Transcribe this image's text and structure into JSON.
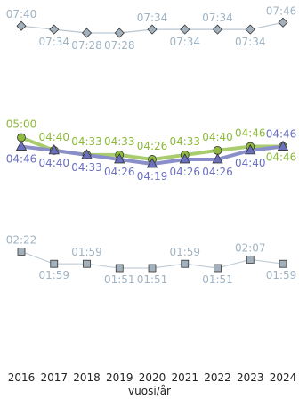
{
  "chart_data": {
    "type": "line",
    "xlabel": "vuosi/år",
    "categories": [
      "2016",
      "2017",
      "2018",
      "2019",
      "2020",
      "2021",
      "2022",
      "2023",
      "2024"
    ],
    "value_format": "mm:ss",
    "series": [
      {
        "id": "top",
        "marker": "diamond",
        "line_color": "#b9c6d2",
        "marker_fill": "#a3b1bd",
        "label_color": "#9fb3c2",
        "values": [
          "07:40",
          "07:34",
          "07:28",
          "07:28",
          "07:34",
          "07:34",
          "07:34",
          "07:34",
          "07:46"
        ]
      },
      {
        "id": "green",
        "marker": "circle",
        "line_color": "#a9cd6e",
        "marker_fill": "#8fba3f",
        "label_color": "#8db83a",
        "values": [
          "05:00",
          "04:40",
          "04:33",
          "04:33",
          "04:26",
          "04:33",
          "04:40",
          "04:46",
          "04:46"
        ]
      },
      {
        "id": "blue",
        "marker": "triangle",
        "line_color": "#8a8fc9",
        "marker_fill": "#6b6fc0",
        "label_color": "#6b70c0",
        "values": [
          "04:46",
          "04:40",
          "04:33",
          "04:26",
          "04:19",
          "04:26",
          "04:26",
          "04:40",
          "04:46"
        ]
      },
      {
        "id": "bottom",
        "marker": "square",
        "line_color": "#c3ced7",
        "marker_fill": "#a3b1bd",
        "label_color": "#9fb3c2",
        "values": [
          "02:22",
          "01:59",
          "01:59",
          "01:51",
          "01:51",
          "01:59",
          "01:51",
          "02:07",
          "01:59"
        ]
      }
    ]
  }
}
